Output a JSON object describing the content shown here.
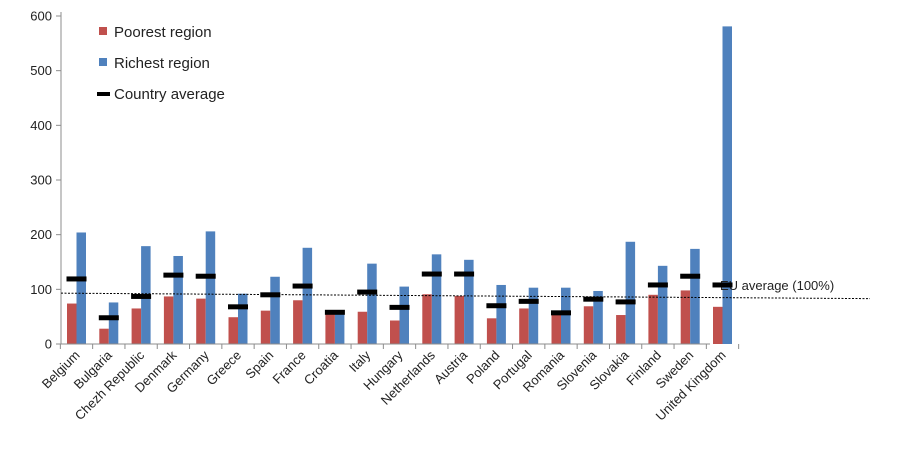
{
  "chart_data": {
    "type": "bar",
    "categories": [
      "Belgium",
      "Bulgaria",
      "Chezh Republic",
      "Denmark",
      "Germany",
      "Greece",
      "Spain",
      "France",
      "Croatia",
      "Italy",
      "Hungary",
      "Netherlands",
      "Austria",
      "Poland",
      "Portugal",
      "Romania",
      "Slovenia",
      "Slovakia",
      "Finland",
      "Sweden",
      "United Kingdom"
    ],
    "series": [
      {
        "name": "Poorest region",
        "color": "#c0504d",
        "values": [
          74,
          28,
          65,
          87,
          83,
          49,
          61,
          80,
          56,
          59,
          43,
          91,
          88,
          47,
          65,
          61,
          69,
          53,
          90,
          98,
          68
        ]
      },
      {
        "name": "Richest region",
        "color": "#4f81bd",
        "values": [
          204,
          76,
          179,
          161,
          206,
          92,
          123,
          176,
          60,
          147,
          105,
          164,
          154,
          108,
          103,
          103,
          97,
          187,
          143,
          174,
          581
        ]
      }
    ],
    "markers": {
      "name": "Country average",
      "color": "#000000",
      "values": [
        119,
        48,
        87,
        126,
        124,
        68,
        90,
        106,
        58,
        95,
        67,
        128,
        128,
        70,
        78,
        57,
        82,
        77,
        108,
        124,
        108
      ]
    },
    "reference_line": {
      "label": "EU average (100%)",
      "y_start": 93,
      "y_end": 83
    },
    "ylim": [
      0,
      600
    ],
    "yticks": [
      0,
      100,
      200,
      300,
      400,
      500,
      600
    ],
    "xlabel": "",
    "ylabel": "",
    "grid": false,
    "legend_position": "top-left"
  }
}
